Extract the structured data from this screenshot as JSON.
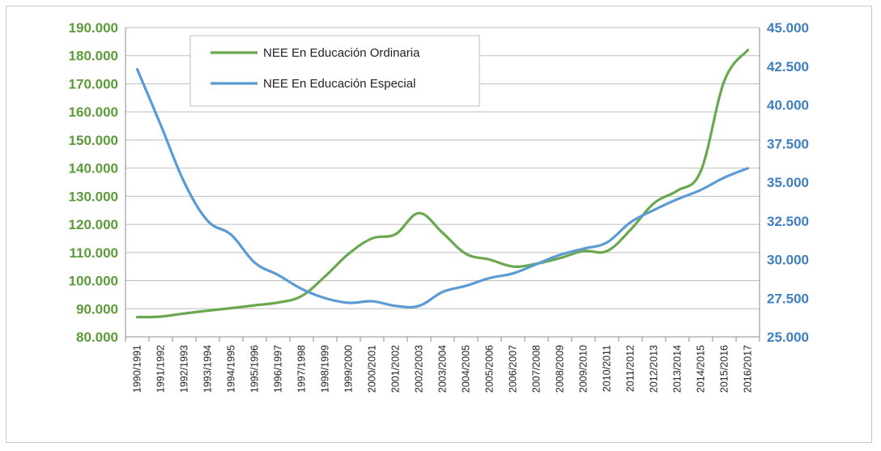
{
  "chart_data": {
    "type": "line",
    "title": "",
    "xlabel": "",
    "ylabel_left": "",
    "ylabel_right": "",
    "legend_position": "top-left",
    "grid": true,
    "colors": {
      "ordinaria": "#6aa84f",
      "especial": "#5b9bd5",
      "left_axis": "#5c9a3a",
      "right_axis": "#3f7fbf",
      "grid": "#bfbfbf"
    },
    "categories": [
      "1990/1991",
      "1991/1992",
      "1992/1993",
      "1993/1994",
      "1994/1995",
      "1995/1996",
      "1996/1997",
      "1997/1998",
      "1998/1999",
      "1999/2000",
      "2000/2001",
      "2001/2002",
      "2002/2003",
      "2003/2004",
      "2004/2005",
      "2005/2006",
      "2006/2007",
      "2007/2008",
      "2008/2009",
      "2009/2010",
      "2010/2011",
      "2011/2012",
      "2012/2013",
      "2013/2014",
      "2014/2015",
      "2015/2016",
      "2016/2017"
    ],
    "y_left": {
      "min": 80000,
      "max": 190000,
      "step": 10000,
      "ticks": [
        "80.000",
        "90.000",
        "100.000",
        "110.000",
        "120.000",
        "130.000",
        "140.000",
        "150.000",
        "160.000",
        "170.000",
        "180.000",
        "190.000"
      ]
    },
    "y_right": {
      "min": 25000,
      "max": 45000,
      "step": 2500,
      "ticks": [
        "25.000",
        "27.500",
        "30.000",
        "32.500",
        "35.000",
        "37.500",
        "40.000",
        "42.500",
        "45.000"
      ]
    },
    "series": [
      {
        "name": "NEE En Educación Ordinaria",
        "axis": "left",
        "values": [
          87000,
          87200,
          88300,
          89300,
          90200,
          91200,
          92200,
          94500,
          101500,
          109500,
          115000,
          116500,
          124000,
          117000,
          109500,
          107500,
          105000,
          106000,
          108000,
          110500,
          110500,
          118000,
          127500,
          132000,
          139000,
          171000,
          182000
        ]
      },
      {
        "name": "NEE En Educación Especial",
        "axis": "right",
        "values": [
          42300,
          38700,
          35000,
          32500,
          31600,
          29800,
          29000,
          28100,
          27500,
          27200,
          27300,
          27000,
          27000,
          27900,
          28300,
          28800,
          29100,
          29700,
          30300,
          30700,
          31100,
          32400,
          33200,
          33900,
          34500,
          35300,
          35900
        ]
      }
    ]
  }
}
